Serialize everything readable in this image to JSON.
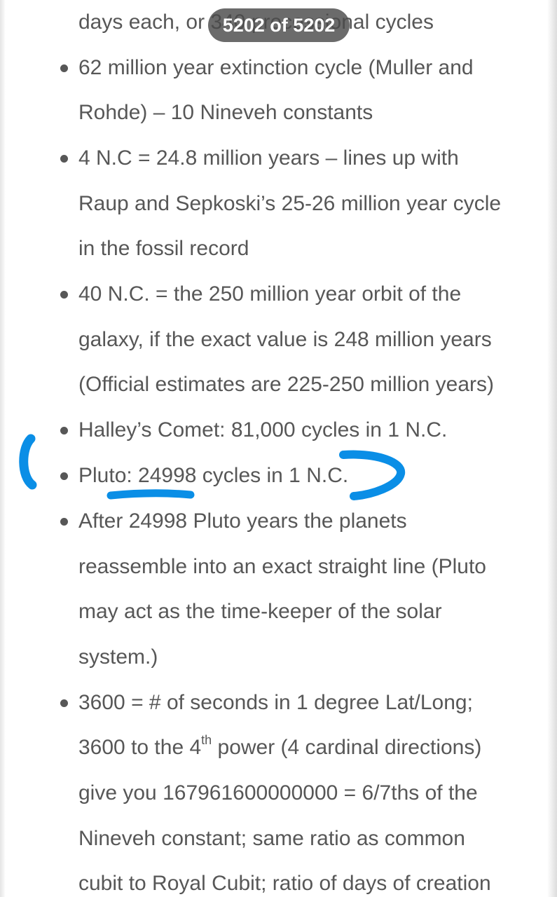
{
  "counter_badge": "5202 of 5202",
  "lines": {
    "l0": "days each, or 340 precessional cycles",
    "l1": "62 million year extinction cycle (Muller and",
    "l2": "Rohde) – 10 Nineveh constants",
    "l3": "4 N.C = 24.8 million years – lines up with",
    "l4": "Raup and Sepkoski’s 25-26 million year cycle",
    "l5": "in the fossil record",
    "l6": "40 N.C. = the 250 million year orbit of the",
    "l7": "galaxy, if the exact value is 248 million years",
    "l8": "(Official estimates are 225-250 million years)",
    "l9": "Halley’s Comet: 81,000 cycles in 1 N.C.",
    "l10": "Pluto: 24998 cycles in 1 N.C.",
    "l11": "After 24998 Pluto years the planets",
    "l12": "reassemble into an exact straight line (Pluto",
    "l13": "may act as the time-keeper of the solar",
    "l14": "system.)",
    "l15": "3600 = # of seconds in 1 degree Lat/Long;",
    "l16_a": "3600 to the 4",
    "l16_sup": "th",
    "l16_b": " power (4 cardinal directions)",
    "l17": "give you 167961600000000 = 6/7ths of the",
    "l18": "Nineveh constant; same ratio as common",
    "l19": "cubit to Royal Cubit; ratio of days of creation"
  },
  "colors": {
    "text": "#575757",
    "highlight_ink": "#0a8ee6",
    "badge_bg": "#4b4b4b"
  }
}
